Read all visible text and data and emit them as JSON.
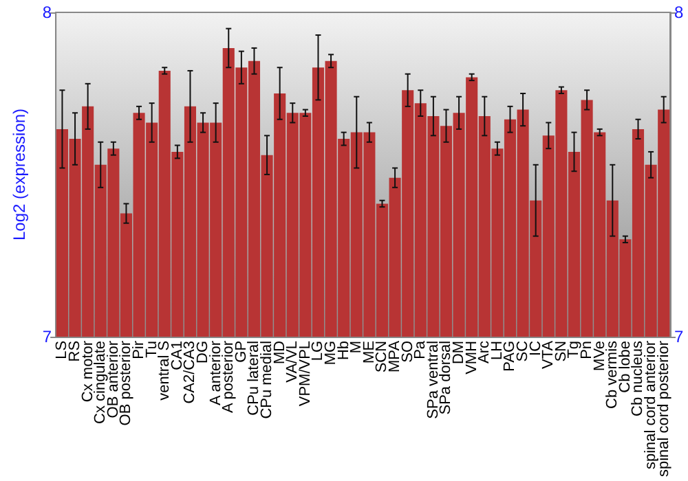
{
  "chart_data": {
    "type": "bar",
    "ylabel": "Log2 (expression)",
    "categories": [
      "LS",
      "RS",
      "Cx motor",
      "Cx cingulate",
      "OB anterior",
      "OB posterior",
      "Pir",
      "Tu",
      "ventral S",
      "CA1",
      "CA2/CA3",
      "DG",
      "A anterior",
      "A posterior",
      "GP",
      "CPu lateral",
      "CPu medial",
      "MD",
      "VA/VL",
      "VPM/VPL",
      "LG",
      "MG",
      "Hb",
      "M",
      "ME",
      "SCN",
      "MPA",
      "SO",
      "Pa",
      "SPa ventral",
      "SPa dorsal",
      "DM",
      "VMH",
      "Arc",
      "LH",
      "PAG",
      "SC",
      "IC",
      "VTA",
      "SN",
      "Tg",
      "Pn",
      "MVe",
      "Cb vermis",
      "Cb lobe",
      "Cb nucleus",
      "spinal cord anterior",
      "spinal cord posterior"
    ],
    "values": [
      7.64,
      7.61,
      7.71,
      7.53,
      7.58,
      7.38,
      7.69,
      7.66,
      7.82,
      7.57,
      7.71,
      7.66,
      7.66,
      7.89,
      7.83,
      7.85,
      7.56,
      7.75,
      7.69,
      7.69,
      7.83,
      7.85,
      7.61,
      7.63,
      7.63,
      7.41,
      7.49,
      7.76,
      7.72,
      7.68,
      7.65,
      7.69,
      7.8,
      7.68,
      7.58,
      7.67,
      7.7,
      7.42,
      7.62,
      7.76,
      7.57,
      7.73,
      7.63,
      7.42,
      7.3,
      7.64,
      7.53,
      7.7
    ],
    "errors": [
      0.12,
      0.08,
      0.07,
      0.07,
      0.02,
      0.03,
      0.02,
      0.06,
      0.01,
      0.02,
      0.11,
      0.03,
      0.06,
      0.06,
      0.05,
      0.04,
      0.06,
      0.08,
      0.03,
      0.01,
      0.1,
      0.02,
      0.02,
      0.11,
      0.03,
      0.01,
      0.03,
      0.05,
      0.04,
      0.06,
      0.05,
      0.05,
      0.01,
      0.06,
      0.02,
      0.04,
      0.05,
      0.11,
      0.04,
      0.01,
      0.06,
      0.03,
      0.01,
      0.11,
      0.01,
      0.03,
      0.04,
      0.04
    ],
    "color": "#b83434",
    "ylim": [
      7,
      8
    ],
    "yticks": [
      7,
      8
    ],
    "y2lim": [
      7,
      8
    ],
    "y2ticks": [
      7,
      8
    ],
    "grid": false
  }
}
